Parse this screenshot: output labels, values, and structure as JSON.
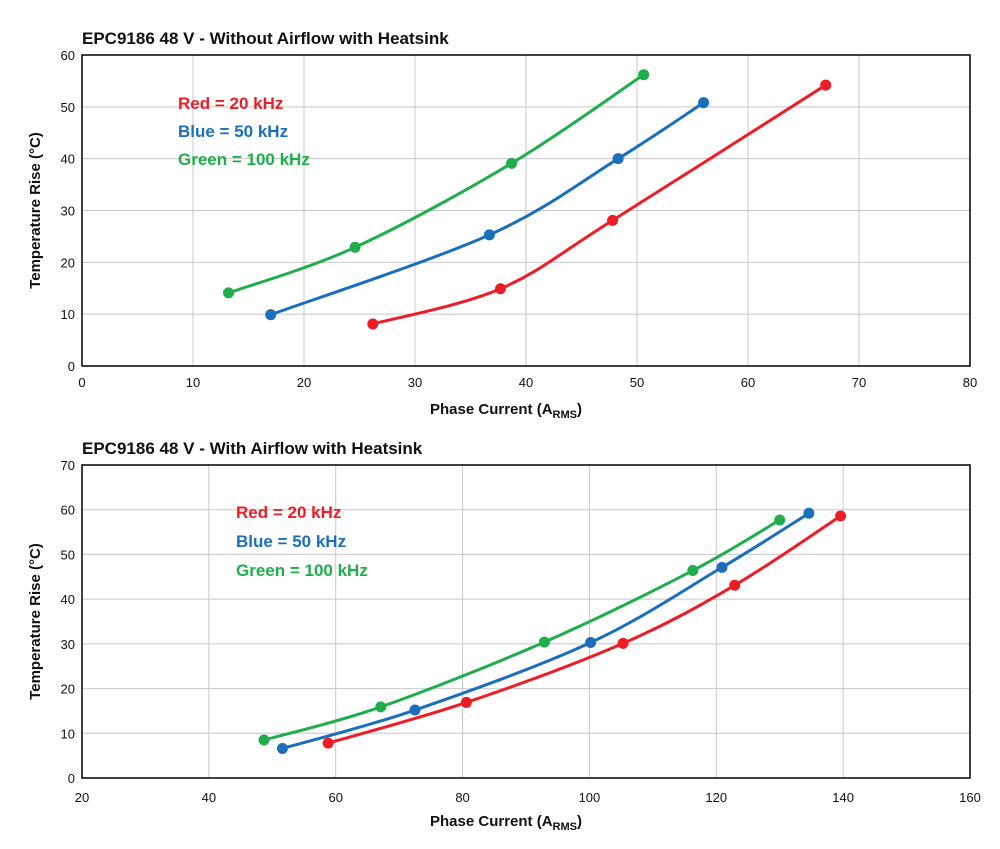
{
  "colors": {
    "red": "#ee1c25",
    "blue": "#1a6fbd",
    "green": "#1fae4b"
  },
  "chart_data": [
    {
      "type": "line",
      "title": "EPC9186 48 V - Without Airflow with Heatsink",
      "xlabel_main": "Phase Current (A",
      "xlabel_sub": "RMS",
      "xlabel_close": ")",
      "ylabel": "Temperature Rise (°C)",
      "xlim": [
        0,
        80
      ],
      "ylim": [
        0,
        60
      ],
      "xticks": [
        0,
        10,
        20,
        30,
        40,
        50,
        60,
        70,
        80
      ],
      "yticks": [
        0,
        10,
        20,
        30,
        40,
        50,
        60
      ],
      "grid": true,
      "legend": [
        "Red = 20 kHz",
        "Blue = 50 kHz",
        "Green = 100 kHz"
      ],
      "series": [
        {
          "name": "Red = 20 kHz",
          "color": "red",
          "x": [
            26.2,
            37.7,
            47.8,
            67.0
          ],
          "y": [
            8.1,
            14.9,
            28.1,
            54.2
          ]
        },
        {
          "name": "Blue = 50 kHz",
          "color": "blue",
          "x": [
            17.0,
            36.7,
            48.3,
            56.0
          ],
          "y": [
            9.9,
            25.3,
            40.0,
            50.8
          ]
        },
        {
          "name": "Green = 100 kHz",
          "color": "green",
          "x": [
            13.2,
            24.6,
            38.7,
            50.6
          ],
          "y": [
            14.1,
            22.9,
            39.1,
            56.2
          ]
        }
      ]
    },
    {
      "type": "line",
      "title": "EPC9186 48 V - With Airflow with Heatsink",
      "xlabel_main": "Phase Current (A",
      "xlabel_sub": "RMS",
      "xlabel_close": ")",
      "ylabel": "Temperature Rise (°C)",
      "xlim": [
        20,
        160
      ],
      "ylim": [
        0,
        70
      ],
      "xticks": [
        20,
        40,
        60,
        80,
        100,
        120,
        140,
        160
      ],
      "yticks": [
        0,
        10,
        20,
        30,
        40,
        50,
        60,
        70
      ],
      "grid": true,
      "legend": [
        "Red = 20 kHz",
        "Blue = 50 kHz",
        "Green = 100 kHz"
      ],
      "series": [
        {
          "name": "Red = 20 kHz",
          "color": "red",
          "x": [
            58.8,
            80.6,
            105.3,
            122.9,
            139.6
          ],
          "y": [
            7.8,
            16.9,
            30.1,
            43.1,
            58.6
          ]
        },
        {
          "name": "Blue = 50 kHz",
          "color": "blue",
          "x": [
            51.6,
            72.5,
            100.2,
            120.9,
            134.6
          ],
          "y": [
            6.6,
            15.2,
            30.3,
            47.1,
            59.2
          ]
        },
        {
          "name": "Green = 100 kHz",
          "color": "green",
          "x": [
            48.7,
            67.1,
            92.9,
            116.3,
            130.0
          ],
          "y": [
            8.5,
            15.9,
            30.4,
            46.4,
            57.7
          ]
        }
      ]
    }
  ]
}
